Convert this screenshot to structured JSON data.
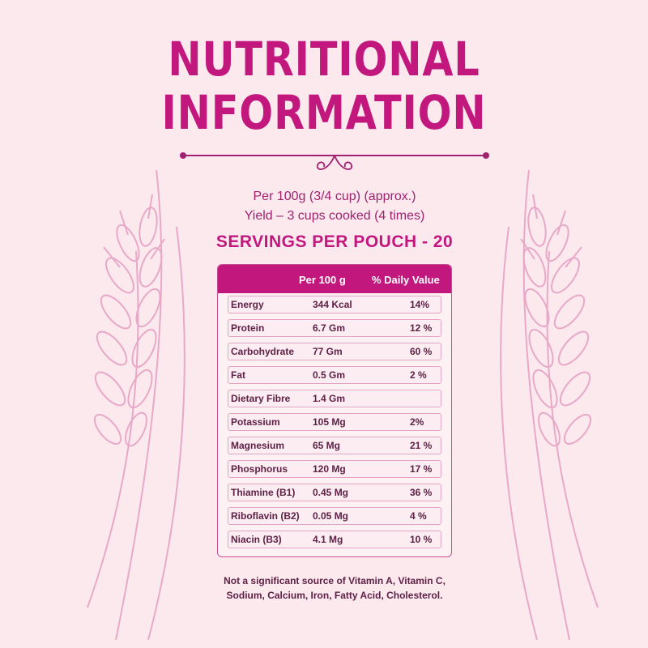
{
  "title": {
    "line1": "NUTRITIONAL",
    "line2": "INFORMATION"
  },
  "serving_info": {
    "per": "Per 100g (3/4 cup) (approx.)",
    "yield": "Yield – 3 cups cooked (4 times)",
    "servings": "SERVINGS PER POUCH - 20"
  },
  "table": {
    "headers": [
      "Per 100 g",
      "% Daily Value"
    ],
    "rows": [
      {
        "nutrient": "Energy",
        "amount": "344 Kcal",
        "dv": "14%"
      },
      {
        "nutrient": "Protein",
        "amount": "6.7 Gm",
        "dv": "12 %"
      },
      {
        "nutrient": "Carbohydrate",
        "amount": "77 Gm",
        "dv": "60 %"
      },
      {
        "nutrient": "Fat",
        "amount": "0.5 Gm",
        "dv": "2 %"
      },
      {
        "nutrient": "Dietary Fibre",
        "amount": "1.4 Gm",
        "dv": ""
      },
      {
        "nutrient": "Potassium",
        "amount": "105 Mg",
        "dv": "2%"
      },
      {
        "nutrient": "Magnesium",
        "amount": "65 Mg",
        "dv": "21 %"
      },
      {
        "nutrient": "Phosphorus",
        "amount": "120 Mg",
        "dv": "17 %"
      },
      {
        "nutrient": "Thiamine (B1)",
        "amount": "0.45 Mg",
        "dv": "36 %"
      },
      {
        "nutrient": "Riboflavin (B2)",
        "amount": "0.05 Mg",
        "dv": "4 %"
      },
      {
        "nutrient": "Niacin (B3)",
        "amount": "4.1 Mg",
        "dv": "10 %"
      }
    ]
  },
  "note": {
    "line1": "Not a significant source of Vitamin A, Vitamin C,",
    "line2": "Sodium, Calcium, Iron, Fatty Acid, Cholesterol."
  },
  "colors": {
    "background": "#fbe9ee",
    "accent": "#c2187e",
    "table_text": "#5e2145",
    "wheat": "#e8a9c8"
  },
  "icons": [
    "wheat-illustration",
    "ornament-divider"
  ]
}
